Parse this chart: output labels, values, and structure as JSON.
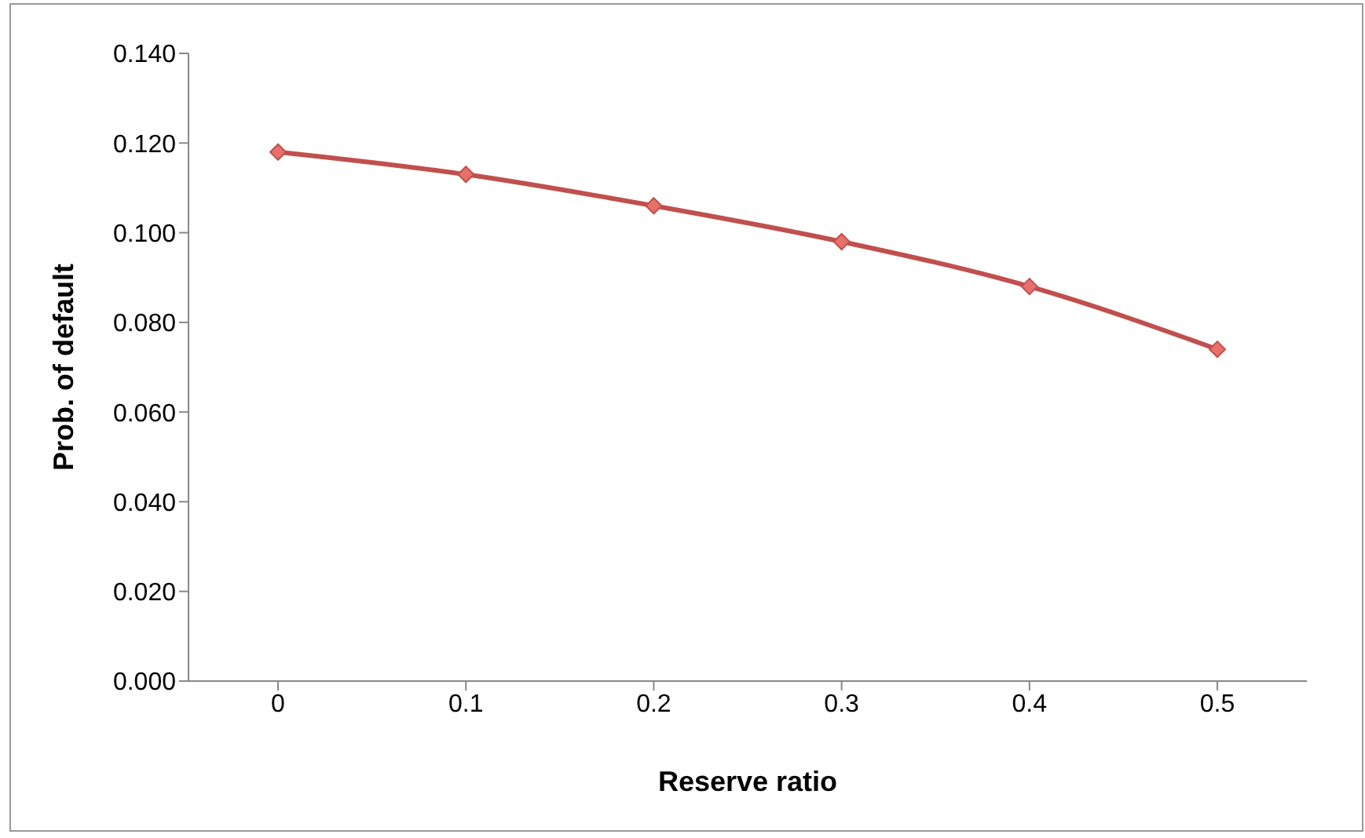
{
  "chart_data": {
    "type": "line",
    "xlabel": "Reserve ratio",
    "ylabel": "Prob. of default",
    "categories": [
      "0",
      "0.1",
      "0.2",
      "0.3",
      "0.4",
      "0.5"
    ],
    "series": [
      {
        "color": "#c0504d",
        "values": [
          0.118,
          0.113,
          0.106,
          0.098,
          0.088,
          0.074
        ]
      }
    ],
    "ylim": [
      0,
      0.14
    ],
    "yticks": [
      {
        "value": 0,
        "label": "0.000"
      },
      {
        "value": 0.02,
        "label": "0.020"
      },
      {
        "value": 0.04,
        "label": "0.040"
      },
      {
        "value": 0.06,
        "label": "0.060"
      },
      {
        "value": 0.08,
        "label": "0.080"
      },
      {
        "value": 0.1,
        "label": "0.100"
      },
      {
        "value": 0.12,
        "label": "0.120"
      },
      {
        "value": 0.14,
        "label": "0.140"
      }
    ],
    "grid": false,
    "legend": false,
    "marker": "diamond",
    "line_style": "solid"
  }
}
